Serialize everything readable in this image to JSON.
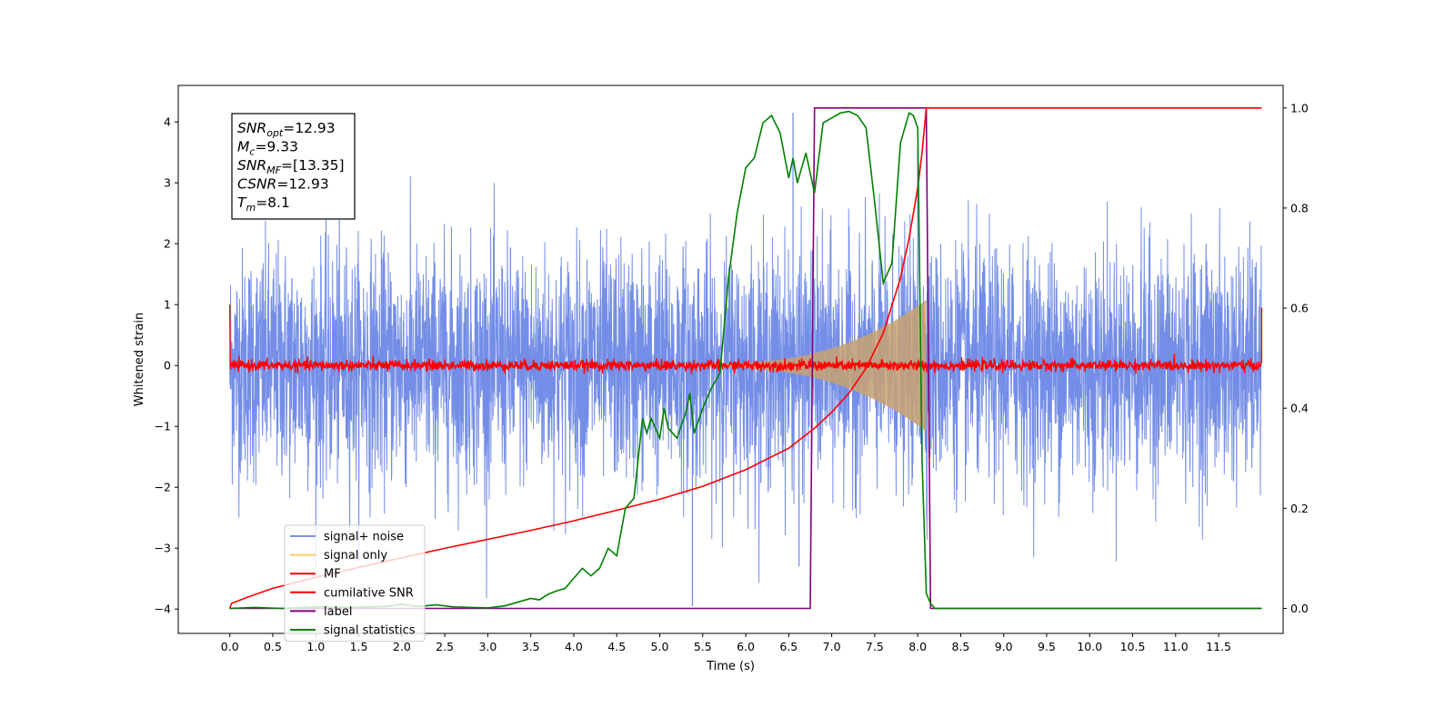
{
  "chart_data": {
    "type": "line",
    "xlabel": "Time (s)",
    "ylabel_left": "Whitened strain",
    "ylabel_right": "",
    "xlim": [
      -0.6,
      12.25
    ],
    "ylim_left": [
      -4.4,
      4.6
    ],
    "ylim_right": [
      -0.05,
      1.045
    ],
    "x_ticks": [
      "0.0",
      "0.5",
      "1.0",
      "1.5",
      "2.0",
      "2.5",
      "3.0",
      "3.5",
      "4.0",
      "4.5",
      "5.0",
      "5.5",
      "6.0",
      "6.5",
      "7.0",
      "7.5",
      "8.0",
      "8.5",
      "9.0",
      "9.5",
      "10.0",
      "10.5",
      "11.0",
      "11.5"
    ],
    "y_ticks_left": [
      "4",
      "3",
      "2",
      "1",
      "0",
      "−1",
      "−2",
      "−3",
      "−4"
    ],
    "y_ticks_right": [
      "1.0",
      "0.8",
      "0.6",
      "0.4",
      "0.2",
      "0.0"
    ],
    "grid": false,
    "legend_position": "lower-left",
    "colors": {
      "signal_noise": "#6d88e6",
      "signal_only": "#c8a271",
      "mf": "#ff0000",
      "cumulative_snr": "#ff0000",
      "label": "#7f007f",
      "signal_statistics": "#008000"
    },
    "annotation": {
      "lines": [
        {
          "base": "SNR",
          "sub": "opt",
          "value": "=12.93"
        },
        {
          "base": "M",
          "sub": "c",
          "value": "=9.33"
        },
        {
          "base": "SNR",
          "sub": "MF",
          "value": "=[13.35]"
        },
        {
          "base": "CSNR",
          "sub": "",
          "value": "=12.93"
        },
        {
          "base": "T",
          "sub": "m",
          "value": "=8.1"
        }
      ]
    },
    "series": [
      {
        "name": "signal+ noise",
        "axis": "left",
        "kind": "noise-band",
        "x_range": [
          0.0,
          12.0
        ],
        "typical_amplitude": 2.3,
        "max_amplitude": 4.15,
        "min_value": -3.95
      },
      {
        "name": "signal only",
        "axis": "left",
        "kind": "chirp-envelope",
        "x_range": [
          5.5,
          8.1
        ],
        "peak_amplitude": 1.05,
        "peak_time": 8.1
      },
      {
        "name": "MF",
        "axis": "left",
        "kind": "noise-trace",
        "x_range": [
          0.0,
          12.0
        ],
        "typical_amplitude": 0.12,
        "edge_value": 1.0
      },
      {
        "name": "cumilative SNR",
        "axis": "right",
        "x": [
          0.0,
          0.02,
          0.2,
          0.5,
          1.0,
          1.5,
          2.0,
          2.5,
          3.0,
          3.5,
          4.0,
          4.5,
          5.0,
          5.5,
          6.0,
          6.5,
          6.8,
          7.0,
          7.2,
          7.4,
          7.6,
          7.8,
          7.9,
          8.0,
          8.05,
          8.1,
          12.0
        ],
        "values": [
          0.0,
          0.01,
          0.022,
          0.04,
          0.062,
          0.082,
          0.101,
          0.12,
          0.138,
          0.156,
          0.175,
          0.196,
          0.218,
          0.244,
          0.277,
          0.32,
          0.36,
          0.392,
          0.43,
          0.48,
          0.55,
          0.66,
          0.74,
          0.84,
          0.91,
          1.0,
          1.0
        ]
      },
      {
        "name": "label",
        "axis": "right",
        "x": [
          0.0,
          6.75,
          6.8,
          8.1,
          8.15,
          12.0
        ],
        "values": [
          0.0,
          0.0,
          1.0,
          1.0,
          0.0,
          0.0
        ]
      },
      {
        "name": "signal statistics",
        "axis": "right",
        "x": [
          0.0,
          0.3,
          0.6,
          1.0,
          1.4,
          1.8,
          2.0,
          2.2,
          2.4,
          2.6,
          2.8,
          3.0,
          3.2,
          3.4,
          3.5,
          3.6,
          3.7,
          3.8,
          3.9,
          4.0,
          4.1,
          4.2,
          4.3,
          4.4,
          4.5,
          4.6,
          4.7,
          4.8,
          4.85,
          4.9,
          5.0,
          5.05,
          5.1,
          5.2,
          5.3,
          5.35,
          5.4,
          5.5,
          5.6,
          5.7,
          5.8,
          5.9,
          6.0,
          6.1,
          6.2,
          6.3,
          6.4,
          6.5,
          6.55,
          6.6,
          6.7,
          6.8,
          6.9,
          7.0,
          7.1,
          7.2,
          7.3,
          7.4,
          7.5,
          7.6,
          7.7,
          7.8,
          7.9,
          7.95,
          8.0,
          8.05,
          8.1,
          8.15,
          8.2,
          8.3,
          12.0
        ],
        "values": [
          0.0,
          0.002,
          0.0,
          0.003,
          0.002,
          0.004,
          0.008,
          0.004,
          0.007,
          0.003,
          0.002,
          0.001,
          0.005,
          0.015,
          0.02,
          0.017,
          0.028,
          0.035,
          0.04,
          0.06,
          0.08,
          0.065,
          0.08,
          0.12,
          0.105,
          0.2,
          0.22,
          0.38,
          0.35,
          0.38,
          0.34,
          0.4,
          0.36,
          0.34,
          0.39,
          0.43,
          0.35,
          0.4,
          0.44,
          0.47,
          0.66,
          0.79,
          0.88,
          0.9,
          0.97,
          0.985,
          0.95,
          0.86,
          0.9,
          0.85,
          0.91,
          0.83,
          0.97,
          0.98,
          0.99,
          0.993,
          0.985,
          0.96,
          0.81,
          0.65,
          0.69,
          0.93,
          0.99,
          0.985,
          0.96,
          0.3,
          0.03,
          0.01,
          0.0,
          0.0,
          0.0
        ]
      }
    ]
  }
}
